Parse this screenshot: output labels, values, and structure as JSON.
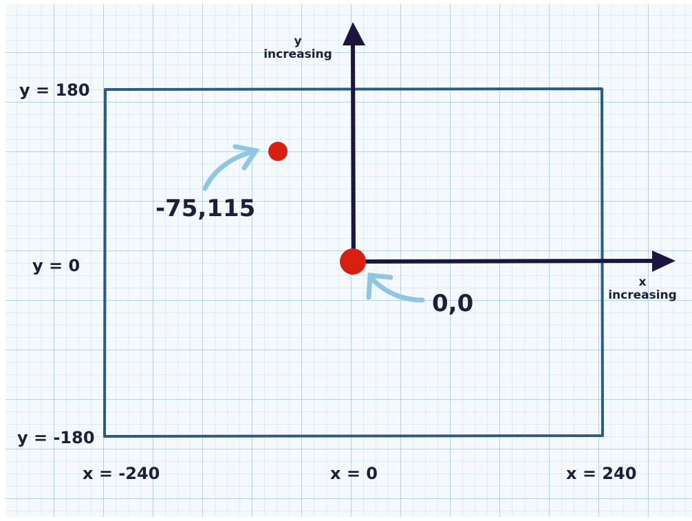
{
  "y_axis_label": {
    "line1": "y",
    "line2": "increasing"
  },
  "x_axis_label": {
    "line1": "x",
    "line2": "increasing"
  },
  "y_labels": {
    "top": "y = 180",
    "middle": "y = 0",
    "bottom": "y = -180"
  },
  "x_labels": {
    "left": "x = -240",
    "middle": "x = 0",
    "right": "x = 240"
  },
  "point_labels": {
    "sample": "-75,115",
    "origin": "0,0"
  },
  "colors": {
    "axis": "#1c1540",
    "frame": "#2c5a85",
    "point": "#d82010",
    "annotation_arrow": "#8ec6e3",
    "text": "#1b1f3b"
  }
}
